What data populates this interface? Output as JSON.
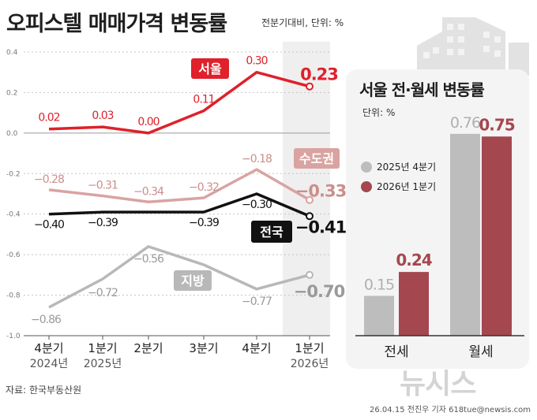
{
  "title": "오피스텔 매매가격 변동률",
  "subtitle": "전분기대비, 단위: %",
  "source": "자료: 한국부동산원",
  "credit": "26.04.15 전진우 기자 618tue@newsis.com",
  "watermark": "뉴시스",
  "colors": {
    "seoul": "#e0202a",
    "metro": "#d9a3a1",
    "national": "#111111",
    "local": "#b8b8b8",
    "bar2025": "#bdbdbd",
    "bar2026": "#a4474f"
  },
  "chart_data": [
    {
      "type": "line",
      "title": "오피스텔 매매가격 변동률",
      "x": [
        {
          "quarter": "4분기",
          "year": "2024년"
        },
        {
          "quarter": "1분기",
          "year": "2025년"
        },
        {
          "quarter": "2분기",
          "year": ""
        },
        {
          "quarter": "3분기",
          "year": ""
        },
        {
          "quarter": "4분기",
          "year": ""
        },
        {
          "quarter": "1분기",
          "year": "2026년"
        }
      ],
      "yticks": [
        "0.4",
        "0.2",
        "0.0",
        "-0.2",
        "-0.4",
        "-0.6",
        "-0.8",
        "-1.0"
      ],
      "ylim": [
        -1.0,
        0.4
      ],
      "series": [
        {
          "key": "seoul",
          "name": "서울",
          "values": [
            0.02,
            0.03,
            0.0,
            0.11,
            0.3,
            0.23
          ],
          "labels": [
            "0.02",
            "0.03",
            "0.00",
            "0.11",
            "0.30",
            "0.23"
          ]
        },
        {
          "key": "metro",
          "name": "수도권",
          "values": [
            -0.28,
            -0.31,
            -0.34,
            -0.32,
            -0.18,
            -0.33
          ],
          "labels": [
            "−0.28",
            "−0.31",
            "−0.34",
            "−0.32",
            "−0.18",
            "−0.33"
          ]
        },
        {
          "key": "national",
          "name": "전국",
          "values": [
            -0.4,
            -0.39,
            -0.39,
            -0.39,
            -0.3,
            -0.41
          ],
          "labels": [
            "−0.40",
            "−0.39",
            "",
            "−0.39",
            "−0.30",
            "−0.41"
          ]
        },
        {
          "key": "local",
          "name": "지방",
          "values": [
            -0.86,
            -0.72,
            -0.56,
            -0.65,
            -0.77,
            -0.7
          ],
          "labels": [
            "−0.86",
            "−0.72",
            "−0.56",
            "",
            "−0.77",
            "−0.70"
          ]
        }
      ]
    },
    {
      "type": "bar",
      "title": "서울 전·월세 변동률",
      "unit": "단위: %",
      "categories": [
        "전세",
        "월세"
      ],
      "series": [
        {
          "key": "bar2025",
          "name": "2025년 4분기",
          "values": [
            0.15,
            0.76
          ],
          "labels": [
            "0.15",
            "0.76"
          ]
        },
        {
          "key": "bar2026",
          "name": "2026년 1분기",
          "values": [
            0.24,
            0.75
          ],
          "labels": [
            "0.24",
            "0.75"
          ]
        }
      ]
    }
  ]
}
